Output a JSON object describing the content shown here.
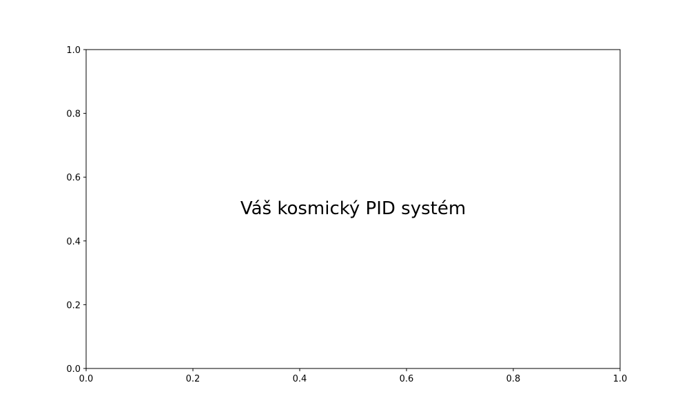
{
  "chart_data": {
    "type": "scatter",
    "title": "",
    "xlabel": "",
    "ylabel": "",
    "xlim": [
      0.0,
      1.0
    ],
    "ylim": [
      0.0,
      1.0
    ],
    "x_ticks": [
      "0.0",
      "0.2",
      "0.4",
      "0.6",
      "0.8",
      "1.0"
    ],
    "y_ticks": [
      "0.0",
      "0.2",
      "0.4",
      "0.6",
      "0.8",
      "1.0"
    ],
    "grid": false,
    "series": [],
    "annotation": {
      "text": "Váš kosmický PID systém",
      "x": 0.5,
      "y": 0.5
    },
    "colors": {
      "axes": "#000000",
      "background": "#ffffff",
      "text": "#000000"
    }
  }
}
